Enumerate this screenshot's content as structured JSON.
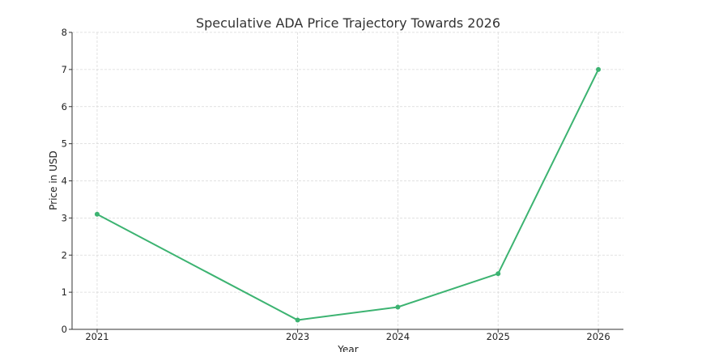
{
  "chart_data": {
    "type": "line",
    "title": "Speculative ADA Price Trajectory Towards 2026",
    "xlabel": "Year",
    "ylabel": "Price in USD",
    "x": [
      2021,
      2023,
      2024,
      2025,
      2026
    ],
    "series": [
      {
        "values": [
          3.1,
          0.25,
          0.6,
          1.5,
          7.0
        ]
      }
    ],
    "xlim": [
      2020.75,
      2026.25
    ],
    "ylim": [
      0,
      8
    ],
    "yticks": [
      0,
      1,
      2,
      3,
      4,
      5,
      6,
      7,
      8
    ],
    "grid": true,
    "line_color": "#3cb371",
    "legend": "none"
  }
}
